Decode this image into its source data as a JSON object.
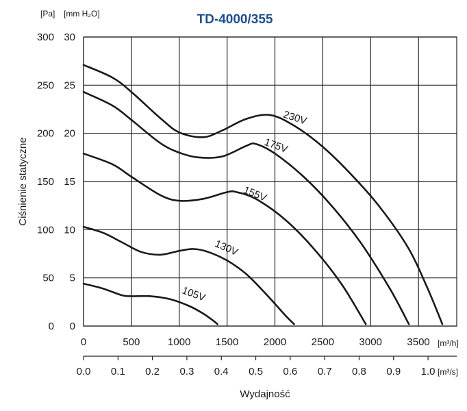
{
  "chart_data": {
    "type": "line",
    "title": "TD-4000/355",
    "ylabel": "Ciśnienie statyczne",
    "xlabel": "Wydajność",
    "y_units": [
      "[Pa]",
      "[mm H₂O]"
    ],
    "x_units": [
      "[m³/h]",
      "[m³/s]"
    ],
    "y_pa_ticks": [
      "0",
      "50",
      "100",
      "150",
      "200",
      "250",
      "300"
    ],
    "y_mm_ticks": [
      "0",
      "5",
      "10",
      "15",
      "20",
      "25",
      "30"
    ],
    "x_m3h_ticks": [
      "0",
      "500",
      "1000",
      "1500",
      "2000",
      "2500",
      "3000",
      "3500"
    ],
    "x_m3s_ticks": [
      "0.0",
      "0.1",
      "0.2",
      "0.3",
      "0.4",
      "0.5",
      "0.6",
      "0.7",
      "0.8",
      "0.9",
      "1.0"
    ],
    "xlim": [
      0,
      3900
    ],
    "ylim": [
      0,
      300
    ],
    "grid": true,
    "series": [
      {
        "name": "230V",
        "x": [
          0,
          300,
          500,
          800,
          1000,
          1250,
          1450,
          1700,
          1950,
          2200,
          2500,
          2800,
          3100,
          3400,
          3600,
          3750
        ],
        "y": [
          271,
          258,
          243,
          216,
          201,
          196,
          203,
          215,
          219,
          208,
          186,
          157,
          123,
          80,
          38,
          2
        ]
      },
      {
        "name": "175V",
        "x": [
          0,
          300,
          500,
          800,
          1000,
          1200,
          1450,
          1700,
          1800,
          2000,
          2300,
          2600,
          2900,
          3200,
          3400
        ],
        "y": [
          243,
          229,
          214,
          190,
          180,
          175,
          176,
          187,
          189,
          179,
          155,
          124,
          86,
          39,
          2
        ]
      },
      {
        "name": "155V",
        "x": [
          0,
          300,
          500,
          800,
          1000,
          1250,
          1500,
          1600,
          1800,
          2100,
          2400,
          2700,
          2950
        ],
        "y": [
          179,
          168,
          155,
          136,
          130,
          132,
          139,
          139,
          132,
          111,
          81,
          43,
          2
        ]
      },
      {
        "name": "130V",
        "x": [
          0,
          200,
          400,
          600,
          800,
          1000,
          1150,
          1300,
          1500,
          1700,
          1900,
          2100,
          2200
        ],
        "y": [
          103,
          97,
          87,
          77,
          74,
          78,
          80,
          77,
          68,
          54,
          34,
          12,
          2
        ]
      },
      {
        "name": "105V",
        "x": [
          0,
          200,
          400,
          500,
          700,
          900,
          1100,
          1250,
          1350,
          1400
        ],
        "y": [
          44,
          39,
          32,
          31,
          31,
          28,
          21,
          13,
          6,
          2
        ]
      }
    ],
    "curve_labels": [
      "230V",
      "175V",
      "155V",
      "130V",
      "105V"
    ]
  }
}
